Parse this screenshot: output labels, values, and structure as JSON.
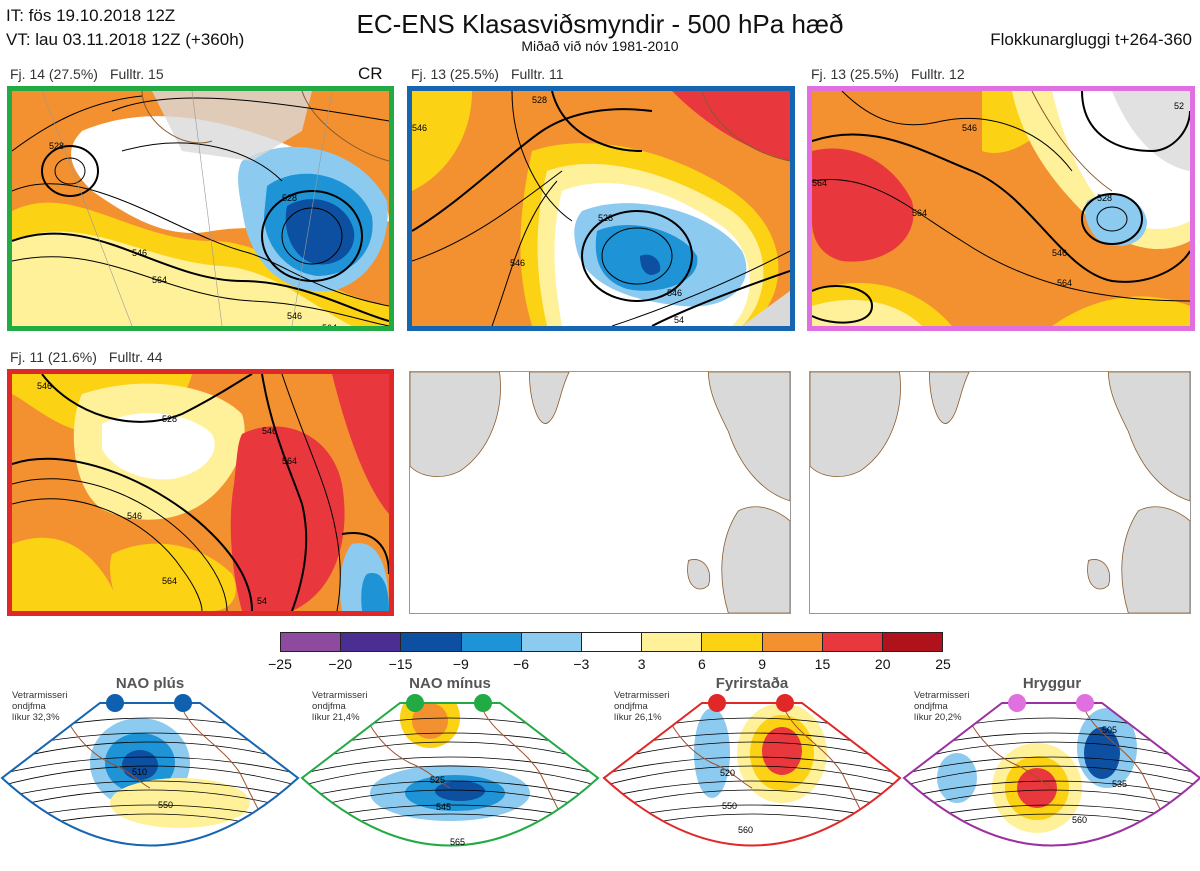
{
  "header": {
    "it_line": "IT: fös 19.10.2018 12Z",
    "vt_line": "VT: lau 03.11.2018 12Z  (+360h)",
    "title": "EC-ENS Klasasviðsmyndir - 500 hPa hæð",
    "subtitle": "Miðað við nóv 1981-2010",
    "window": "Flokkunargluggi t+264-360"
  },
  "panels": [
    {
      "freq": "Fj. 14 (27.5%)",
      "members": "Fulltr. 15",
      "extra": "CR",
      "border": "#22aa44",
      "contours": [
        "528",
        "546",
        "564",
        "528",
        "546",
        "564"
      ]
    },
    {
      "freq": "Fj. 13 (25.5%)",
      "members": "Fulltr. 11",
      "border": "#1565b0",
      "contours": [
        "528",
        "546",
        "528",
        "546",
        "546",
        "54"
      ]
    },
    {
      "freq": "Fj. 13 (25.5%)",
      "members": "Fulltr. 12",
      "border": "#e070e0",
      "contours": [
        "546",
        "564",
        "564",
        "528",
        "546",
        "564",
        "52"
      ]
    },
    {
      "freq": "Fj. 11 (21.6%)",
      "members": "Fulltr. 44",
      "border": "#e02828",
      "contours": [
        "546",
        "528",
        "546",
        "564",
        "546",
        "564",
        "54"
      ]
    }
  ],
  "colorbar": {
    "colors": [
      "#8e4a9e",
      "#4b2e91",
      "#0d4fa0",
      "#1e93d6",
      "#8ccaf0",
      "#ffffff",
      "#fff19a",
      "#fbd214",
      "#f39130",
      "#e8383d",
      "#b0121b"
    ],
    "ticks": [
      "−25",
      "−20",
      "−15",
      "−9",
      "−6",
      "−3",
      "3",
      "6",
      "9",
      "15",
      "20",
      "25"
    ]
  },
  "regimes": [
    {
      "name": "NAO plús",
      "note_lines": [
        "Vetrarmisseri",
        "ondjfma",
        "líkur 32,3%"
      ],
      "dot_color": "#1060b0",
      "border": "#1565b0",
      "contours": [
        "510",
        "550"
      ]
    },
    {
      "name": "NAO mínus",
      "note_lines": [
        "Vetrarmisseri",
        "ondjfma",
        "líkur 21,4%"
      ],
      "dot_color": "#22aa44",
      "border": "#22aa44",
      "contours": [
        "525",
        "545",
        "565"
      ]
    },
    {
      "name": "Fyrirstaða",
      "note_lines": [
        "Vetrarmisseri",
        "ondjfma",
        "líkur 26,1%"
      ],
      "dot_color": "#e02828",
      "border": "#e02828",
      "contours": [
        "520",
        "550",
        "560"
      ]
    },
    {
      "name": "Hryggur",
      "note_lines": [
        "Vetrarmisseri",
        "ondjfma",
        "líkur 20,2%"
      ],
      "dot_color": "#e070e0",
      "border": "#9b30a0",
      "contours": [
        "505",
        "535",
        "560"
      ]
    }
  ]
}
